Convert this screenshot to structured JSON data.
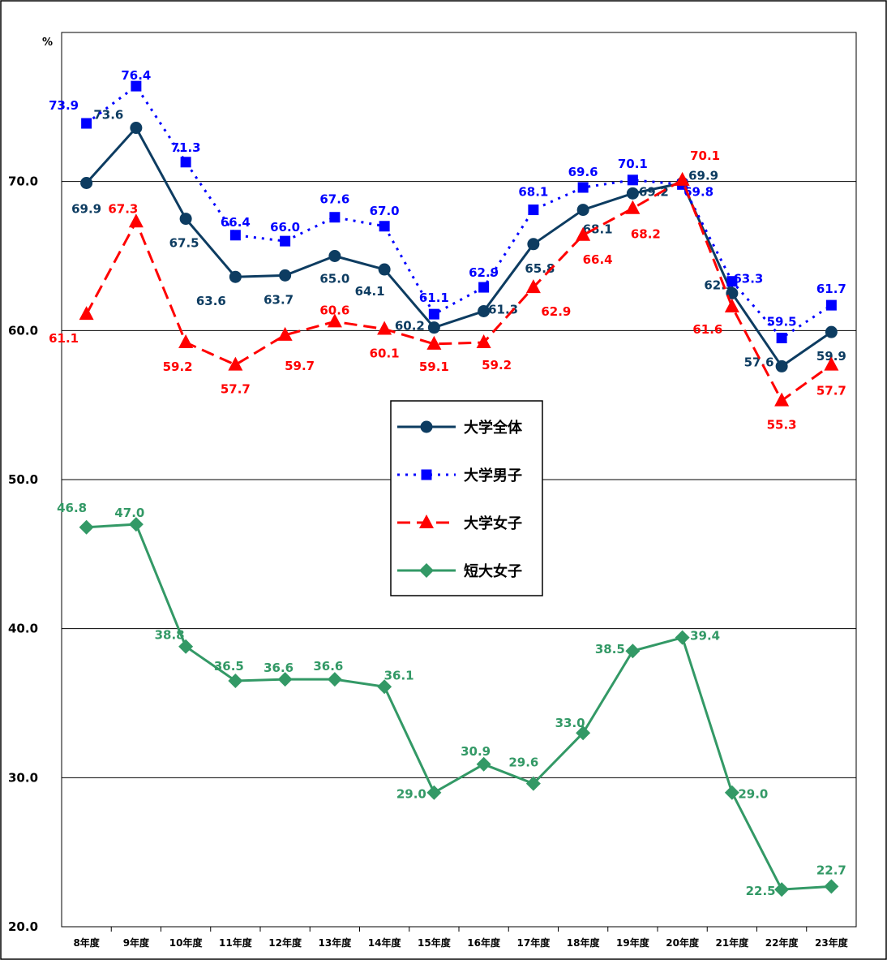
{
  "chart_data": {
    "type": "line",
    "ylabel": "%",
    "ylim": [
      20,
      80
    ],
    "yticks": [
      "20.0",
      "30.0",
      "40.0",
      "50.0",
      "60.0",
      "70.0"
    ],
    "categories": [
      "8年度",
      "9年度",
      "10年度",
      "11年度",
      "12年度",
      "13年度",
      "14年度",
      "15年度",
      "16年度",
      "17年度",
      "18年度",
      "19年度",
      "20年度",
      "21年度",
      "22年度",
      "23年度"
    ],
    "grid": true,
    "legend_position": "center",
    "series": [
      {
        "name": "大学全体",
        "color": "#0d3c61",
        "marker": "circle",
        "dash": "solid",
        "values": [
          69.9,
          73.6,
          67.5,
          63.6,
          63.7,
          65.0,
          64.1,
          60.2,
          61.3,
          65.8,
          68.1,
          69.2,
          69.9,
          62.5,
          57.6,
          59.9
        ],
        "labels": [
          "69.9",
          "73.6",
          "67.5",
          "63.6",
          "63.7",
          "65.0",
          "64.1",
          "60.2",
          "61.3",
          "65.8",
          "68.1",
          "69.2",
          "69.9",
          "62.5",
          "57.6",
          "59.9"
        ]
      },
      {
        "name": "大学男子",
        "color": "#0000ff",
        "marker": "square",
        "dash": "dotted",
        "values": [
          73.9,
          76.4,
          71.3,
          66.4,
          66.0,
          67.6,
          67.0,
          61.1,
          62.9,
          68.1,
          69.6,
          70.1,
          69.8,
          63.3,
          59.5,
          61.7
        ],
        "labels": [
          "73.9",
          "76.4",
          "71.3",
          "66.4",
          "66.0",
          "67.6",
          "67.0",
          "61.1",
          "62.9",
          "68.1",
          "69.6",
          "70.1",
          "69.8",
          "63.3",
          "59.5",
          "61.7"
        ]
      },
      {
        "name": "大学女子",
        "color": "#ff0000",
        "marker": "triangle",
        "dash": "dashed",
        "values": [
          61.1,
          67.3,
          59.2,
          57.7,
          59.7,
          60.6,
          60.1,
          59.1,
          59.2,
          62.9,
          66.4,
          68.2,
          70.1,
          61.6,
          55.3,
          57.7
        ],
        "labels": [
          "61.1",
          "67.3",
          "59.2",
          "57.7",
          "59.7",
          "60.6",
          "60.1",
          "59.1",
          "59.2",
          "62.9",
          "66.4",
          "68.2",
          "70.1",
          "61.6",
          "55.3",
          "57.7"
        ]
      },
      {
        "name": "短大女子",
        "color": "#339966",
        "marker": "diamond",
        "dash": "solid",
        "values": [
          46.8,
          47.0,
          38.8,
          36.5,
          36.6,
          36.6,
          36.1,
          29.0,
          30.9,
          29.6,
          33.0,
          38.5,
          39.4,
          29.0,
          22.5,
          22.7
        ],
        "labels": [
          "46.8",
          "47.0",
          "38.8",
          "36.5",
          "36.6",
          "36.6",
          "36.1",
          "29.0",
          "30.9",
          "29.6",
          "33.0",
          "38.5",
          "39.4",
          "29.0",
          "22.5",
          "22.7"
        ]
      }
    ]
  }
}
